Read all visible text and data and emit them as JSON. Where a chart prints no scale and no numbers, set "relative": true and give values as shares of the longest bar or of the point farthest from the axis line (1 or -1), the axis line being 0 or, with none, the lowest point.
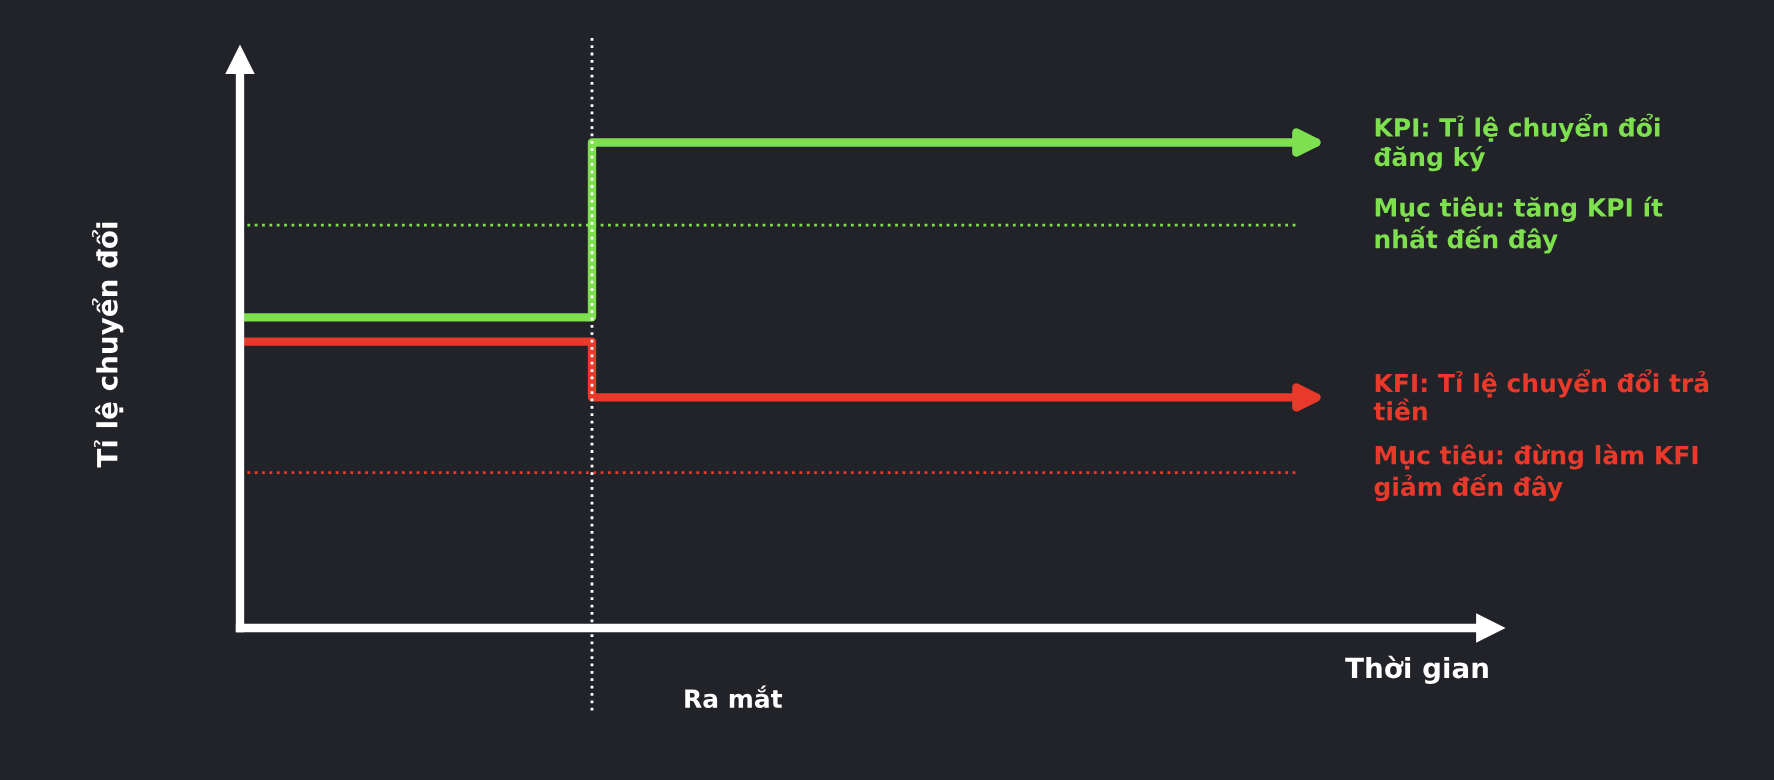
{
  "chart_data": {
    "type": "step",
    "relative": true,
    "xlabel": "Thời gian",
    "ylabel": "Tỉ lệ chuyển đổi",
    "categories": [
      null,
      null,
      null,
      null
    ],
    "legend": "right",
    "annotations": [
      "Ra mắt"
    ],
    "marker": "none",
    "line_style": "solid",
    "series": [
      {
        "name": "KPI: Tỉ lệ chuyển đổi đăng ký",
        "color": "#7ee04f",
        "values": [
          0.64,
          1,
          1,
          1
        ]
      },
      {
        "name": "KFI: Tỉ lệ chuyển đổi trả tiền",
        "color": "#e8392b",
        "values": [
          0.59,
          0.475,
          0.475,
          0.475
        ]
      }
    ],
    "ref_lines": [
      {
        "axis": "y",
        "value": 0.83,
        "label": "Mục tiêu: tăng KPI ít nhất đến đây",
        "color": "#7ee04f",
        "line_style": "dotted"
      },
      {
        "axis": "y",
        "value": 0.32,
        "label": "Mục tiêu: đừng làm KFI giảm đến đây",
        "color": "#e8392b",
        "line_style": "dotted"
      }
    ]
  }
}
